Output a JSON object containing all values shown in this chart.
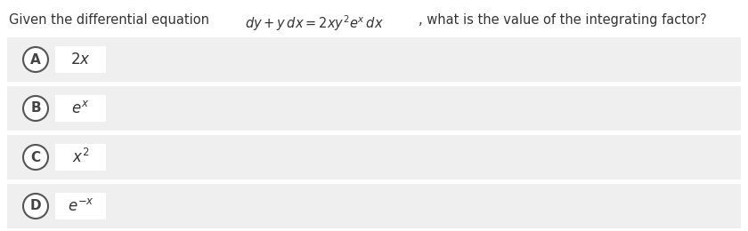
{
  "question_plain": "Given the differential equation ",
  "question_math": "$dy + y\\,dx = 2xy^2e^x\\,dx$",
  "question_suffix": ", what is the value of the integrating factor?",
  "options": [
    "A",
    "B",
    "C",
    "D"
  ],
  "option_math": [
    "$2x$",
    "$e^x$",
    "$x^2$",
    "$e^{-x}$"
  ],
  "bg_color": "#f5f5f5",
  "white": "#ffffff",
  "option_bg_color": "#efefef",
  "circle_edge_color": "#555555",
  "text_color": "#333333",
  "label_color": "#444444",
  "question_fontsize": 10.5,
  "option_label_fontsize": 11,
  "option_math_fontsize": 12,
  "fig_width": 8.4,
  "fig_height": 2.6,
  "dpi": 100
}
